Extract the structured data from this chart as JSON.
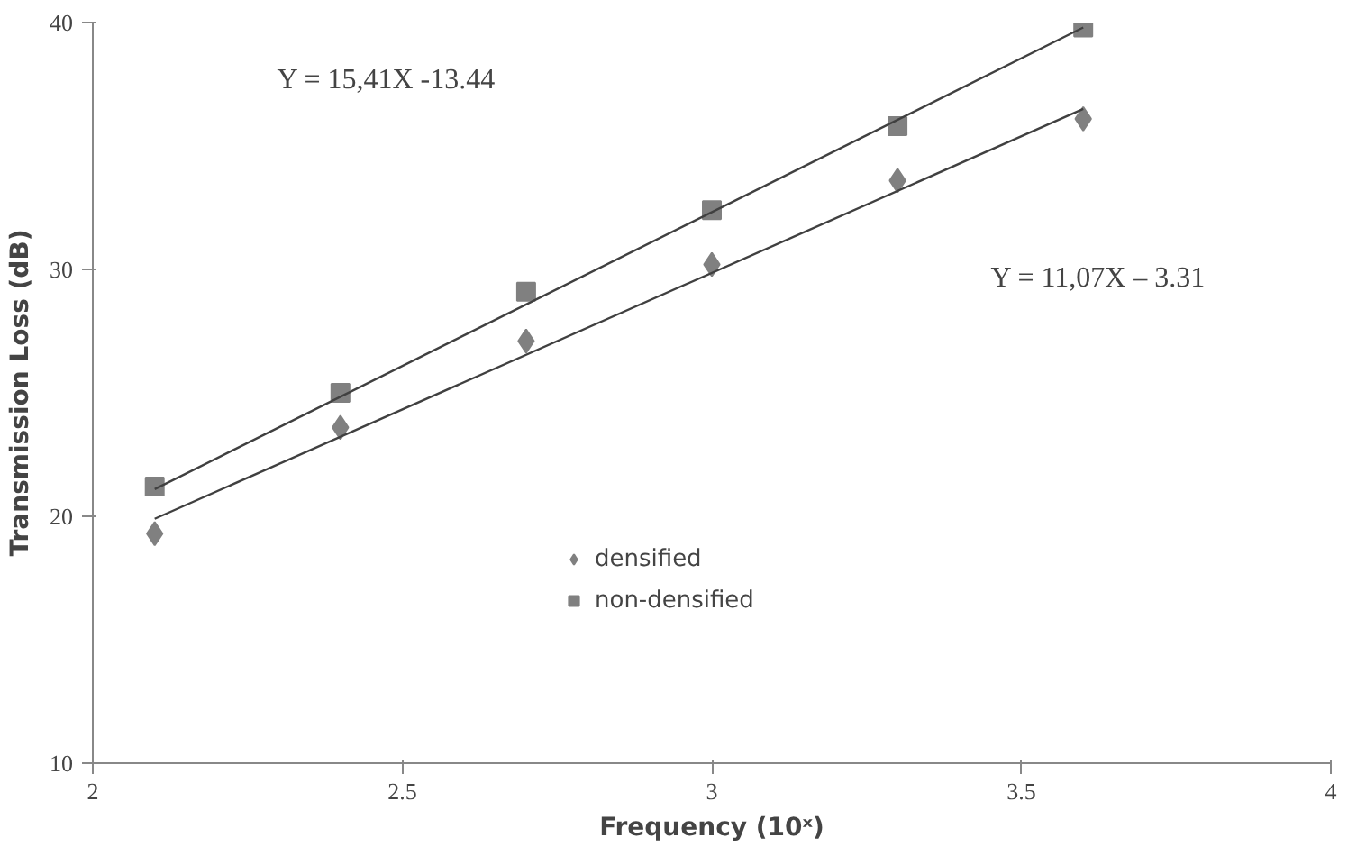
{
  "chart_data": {
    "type": "scatter",
    "xlabel": "Frequency (10ˣ)",
    "ylabel": "Transmission Loss (dB)",
    "xlim": [
      2,
      4
    ],
    "xticks": [
      2,
      2.5,
      3,
      3.5,
      4
    ],
    "ylim": [
      10,
      40
    ],
    "yticks": [
      10,
      20,
      30,
      40
    ],
    "legend": "center",
    "grid": false,
    "series": [
      {
        "name": "densified",
        "color": "#808080",
        "marker": "diamond",
        "x": [
          2.1,
          2.4,
          2.7,
          3.0,
          3.3,
          3.6
        ],
        "values": [
          19.3,
          23.6,
          27.1,
          30.2,
          33.6,
          36.1
        ]
      },
      {
        "name": "non-densified",
        "color": "#808080",
        "marker": "square",
        "x": [
          2.1,
          2.4,
          2.7,
          3.0,
          3.3,
          3.6
        ],
        "values": [
          21.2,
          25.0,
          29.1,
          32.4,
          35.8,
          39.8
        ]
      },
      {
        "type": "line",
        "color": "#404040",
        "x": [
          2.1,
          3.6
        ],
        "values": [
          19.9,
          36.5
        ]
      },
      {
        "type": "line",
        "color": "#404040",
        "x": [
          2.1,
          3.6
        ],
        "values": [
          21.1,
          39.8
        ]
      }
    ],
    "annotations": [
      "Y = 15,41X -13.44",
      "Y = 11,07X – 3.31"
    ]
  }
}
